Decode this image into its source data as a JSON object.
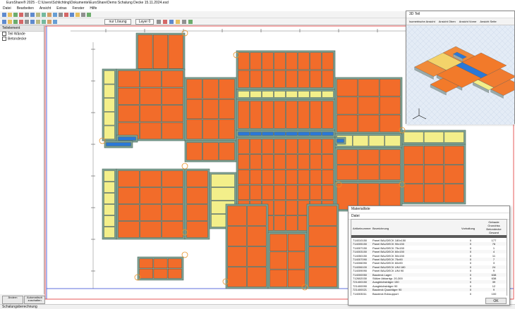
{
  "window": {
    "title": "EuroShare® 2025 - C:\\Users\\Schlichting\\Dokumente\\EuroShare\\Demo Schalung Decke 15.11.2024.esd",
    "status": "Schalungsberechnung"
  },
  "menu": [
    "Datei",
    "Bearbeiten",
    "Ansicht",
    "Extras",
    "Fenster",
    "Hilfe"
  ],
  "toolbar": {
    "mode": "nur Lösung",
    "layer": "Layer 0"
  },
  "tree": {
    "header": "Teilelement",
    "items": [
      "Teil Wände",
      "Betondecke"
    ]
  },
  "buttons": [
    "Ändern",
    "Automatisch zuschalten"
  ],
  "view3d": {
    "title": "3D Teil",
    "tabs": [
      "Isometrische Ansicht",
      "Ansicht Oben",
      "Ansicht Vorne",
      "Ansicht Seite"
    ]
  },
  "materials": {
    "title": "Materialliste",
    "menu": "Datei",
    "headers": [
      "Artikelnummer",
      "Bezeichnung",
      "Vorhaltung"
    ],
    "total_header": [
      "Gebaute",
      "Grundriss",
      "Betondecke",
      "Gesamt"
    ],
    "rows": [
      [
        "714010150",
        "Panel BAUDECK 180x150",
        "0",
        "177"
      ],
      [
        "714005150",
        "Panel BAUDECK 90x150",
        "0",
        "76"
      ],
      [
        "714007150",
        "Panel BAUDECK 75x150",
        "0",
        "1"
      ],
      [
        "714003150",
        "Panel BAUDECK 60x150",
        "0",
        "4"
      ],
      [
        "714050150",
        "Panel BAUDECK 50x150",
        "0",
        "11"
      ],
      [
        "714007090",
        "Panel BAUDECK 75x90",
        "0",
        "7"
      ],
      [
        "714006090",
        "Panel BAUDECK 60x90",
        "0",
        "3"
      ],
      [
        "714006100",
        "Panel BAUDECK UNI 180",
        "0",
        "24"
      ],
      [
        "714009090",
        "Panel BAUDECK UNI 90",
        "0",
        "9"
      ],
      [
        "714000050",
        "Baudeck Lager",
        "0",
        "638"
      ],
      [
        "712602030",
        "Stütze Abkantgr. 20-300",
        "0",
        "638"
      ],
      [
        "721400150",
        "Ausgleichsträger 150",
        "0",
        "39"
      ],
      [
        "721400090",
        "Ausgleichsträger 90",
        "0",
        "12"
      ],
      [
        "721400021",
        "Baudeck Quadräger 90",
        "0",
        "9"
      ],
      [
        "714003011",
        "Baudeck Ecksupport",
        "0",
        "100"
      ]
    ],
    "ok": "OK"
  }
}
